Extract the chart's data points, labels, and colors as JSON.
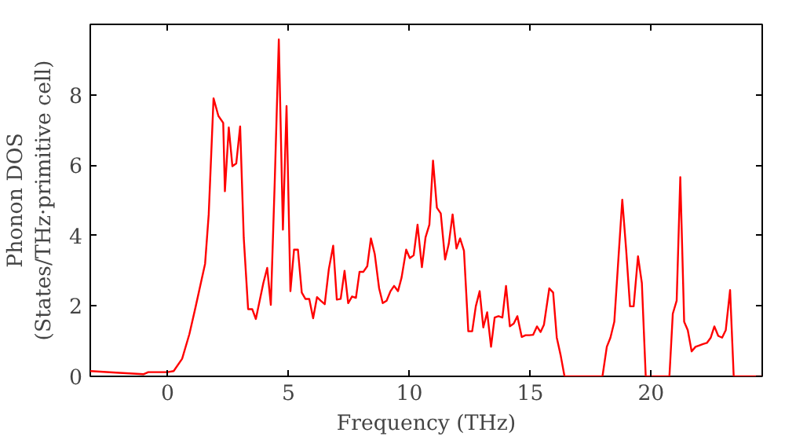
{
  "chart_data": {
    "type": "line",
    "xlabel": "Frequency (THz)",
    "ylabel": "Phonon DOS\n(States/THz·primitive cell)",
    "xlim": [
      -3.2,
      24.6
    ],
    "ylim": [
      0,
      10
    ],
    "xticks": [
      0,
      5,
      10,
      15,
      20
    ],
    "yticks": [
      0,
      2,
      4,
      6,
      8
    ],
    "grid": false,
    "marker": "none",
    "line_style": "solid",
    "series": [
      {
        "color": "#ff0000",
        "x": [
          -3.2,
          -2.0,
          -1.0,
          -0.8,
          0.0,
          0.25,
          0.6,
          0.9,
          1.15,
          1.55,
          1.7,
          1.9,
          2.1,
          2.3,
          2.37,
          2.53,
          2.68,
          2.84,
          3.0,
          3.15,
          3.33,
          3.5,
          3.65,
          3.96,
          4.12,
          4.27,
          4.43,
          4.6,
          4.77,
          4.92,
          5.08,
          5.23,
          5.39,
          5.55,
          5.7,
          5.86,
          6.02,
          6.18,
          6.33,
          6.5,
          6.67,
          6.85,
          7.0,
          7.16,
          7.32,
          7.47,
          7.63,
          7.79,
          7.94,
          8.1,
          8.26,
          8.41,
          8.57,
          8.75,
          8.9,
          9.06,
          9.22,
          9.37,
          9.53,
          9.68,
          9.87,
          10.02,
          10.18,
          10.34,
          10.52,
          10.67,
          10.83,
          10.98,
          11.14,
          11.3,
          11.48,
          11.63,
          11.79,
          11.95,
          12.1,
          12.26,
          12.44,
          12.6,
          12.75,
          12.91,
          13.06,
          13.22,
          13.38,
          13.53,
          13.69,
          13.85,
          14.0,
          14.16,
          14.32,
          14.47,
          14.65,
          14.81,
          14.97,
          15.12,
          15.28,
          15.43,
          15.57,
          15.79,
          15.95,
          16.1,
          16.26,
          16.42,
          17.99,
          18.17,
          18.32,
          18.48,
          18.66,
          18.81,
          18.97,
          19.13,
          19.28,
          19.46,
          19.62,
          19.78,
          20.76,
          20.9,
          21.06,
          21.21,
          21.37,
          21.52,
          21.68,
          21.84,
          22.0,
          22.15,
          22.31,
          22.47,
          22.62,
          22.78,
          22.94,
          23.09,
          23.27,
          23.42,
          24.6
        ],
        "values": [
          0.15,
          0.1,
          0.06,
          0.12,
          0.12,
          0.15,
          0.5,
          1.2,
          1.95,
          3.2,
          4.6,
          7.9,
          7.4,
          7.2,
          5.26,
          7.07,
          5.97,
          6.05,
          7.1,
          3.93,
          1.91,
          1.91,
          1.63,
          2.65,
          3.08,
          2.03,
          5.5,
          9.57,
          4.17,
          7.68,
          2.42,
          3.6,
          3.6,
          2.38,
          2.2,
          2.2,
          1.65,
          2.25,
          2.15,
          2.05,
          3.05,
          3.71,
          2.18,
          2.2,
          3.0,
          2.08,
          2.27,
          2.23,
          2.97,
          2.97,
          3.13,
          3.92,
          3.47,
          2.5,
          2.08,
          2.15,
          2.42,
          2.57,
          2.42,
          2.81,
          3.6,
          3.36,
          3.44,
          4.31,
          3.1,
          3.95,
          4.31,
          6.13,
          4.79,
          4.63,
          3.32,
          3.76,
          4.6,
          3.63,
          3.92,
          3.57,
          1.28,
          1.28,
          1.99,
          2.42,
          1.39,
          1.82,
          0.84,
          1.67,
          1.71,
          1.67,
          2.57,
          1.42,
          1.5,
          1.71,
          1.12,
          1.17,
          1.17,
          1.18,
          1.42,
          1.26,
          1.47,
          2.5,
          2.38,
          1.1,
          0.6,
          0.0,
          0.0,
          0.84,
          1.1,
          1.55,
          3.45,
          5.02,
          3.6,
          1.99,
          1.99,
          3.41,
          2.65,
          0.0,
          0.0,
          1.78,
          2.15,
          5.66,
          1.55,
          1.31,
          0.71,
          0.84,
          0.88,
          0.92,
          0.95,
          1.1,
          1.42,
          1.15,
          1.1,
          1.31,
          2.45,
          0.0,
          0.0
        ]
      }
    ]
  }
}
